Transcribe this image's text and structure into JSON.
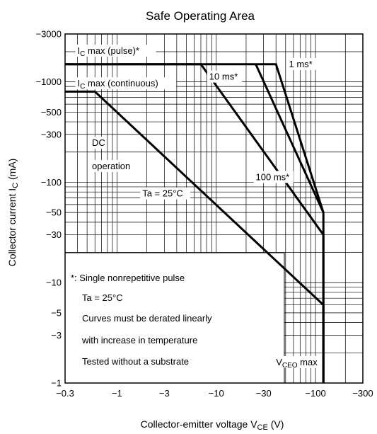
{
  "chart_data": {
    "type": "line",
    "title": "Safe Operating Area",
    "xlabel": "Collector-emitter voltage",
    "xlabel_symbol": "V",
    "xlabel_sub": "CE",
    "xlabel_unit": "(V)",
    "ylabel": "Collector current",
    "ylabel_symbol": "I",
    "ylabel_sub": "C",
    "ylabel_unit": "(mA)",
    "x_scale": "log",
    "y_scale": "log",
    "xlim": [
      -0.3,
      -300
    ],
    "ylim": [
      -1,
      -3000
    ],
    "grid": true,
    "x_ticks": [
      {
        "value": -0.3,
        "label": "−0.3"
      },
      {
        "value": -1,
        "label": "−1"
      },
      {
        "value": -3,
        "label": "−3"
      },
      {
        "value": -10,
        "label": "−10"
      },
      {
        "value": -30,
        "label": "−30"
      },
      {
        "value": -100,
        "label": "−100"
      },
      {
        "value": -300,
        "label": "−300"
      }
    ],
    "y_ticks": [
      {
        "value": -1,
        "label": "−1"
      },
      {
        "value": -3,
        "label": "−3"
      },
      {
        "value": -5,
        "label": "−5"
      },
      {
        "value": -10,
        "label": "−10"
      },
      {
        "value": -30,
        "label": "−30"
      },
      {
        "value": -50,
        "label": "−50"
      },
      {
        "value": -100,
        "label": "−100"
      },
      {
        "value": -300,
        "label": "−300"
      },
      {
        "value": -500,
        "label": "−500"
      },
      {
        "value": -1000,
        "label": "−1000"
      },
      {
        "value": -3000,
        "label": "−3000"
      }
    ],
    "series": [
      {
        "name": "1 ms*",
        "points": [
          [
            -0.3,
            -1500
          ],
          [
            -40,
            -1500
          ],
          [
            -120,
            -50
          ],
          [
            -120,
            -1
          ]
        ]
      },
      {
        "name": "10 ms*",
        "points": [
          [
            -25,
            -1500
          ],
          [
            -120,
            -50
          ]
        ]
      },
      {
        "name": "100 ms*",
        "points": [
          [
            -0.3,
            -1500
          ],
          [
            -7,
            -1500
          ],
          [
            -120,
            -30
          ],
          [
            -120,
            -1
          ]
        ]
      },
      {
        "name": "DC operation",
        "points": [
          [
            -0.3,
            -800
          ],
          [
            -0.6,
            -800
          ],
          [
            -120,
            -6
          ],
          [
            -120,
            -1
          ]
        ]
      }
    ],
    "annotations": [
      {
        "text": "I",
        "sub": "C",
        "rest": " max (pulse)*",
        "x": -0.4,
        "y": -1900
      },
      {
        "text": "I",
        "sub": "C",
        "rest": " max (continuous)",
        "x": -0.4,
        "y": -900
      },
      {
        "text": "10 ms*",
        "x": -8.5,
        "y": -1050
      },
      {
        "text": "1 ms*",
        "x": -54,
        "y": -1400
      },
      {
        "text": "DC",
        "x": -0.56,
        "y": -230
      },
      {
        "text": "operation",
        "x": -0.56,
        "y": -135
      },
      {
        "text": "100 ms*",
        "x": -25,
        "y": -105
      },
      {
        "text": "Ta = 25°C",
        "x": -1.8,
        "y": -72
      },
      {
        "text": "V",
        "sub": "CEO",
        "rest": " max",
        "x": -40,
        "y": -1.5
      }
    ],
    "notes": [
      {
        "text": "*:  Single nonrepetitive pulse"
      },
      {
        "text": "Ta = 25°C"
      },
      {
        "text": "Curves must be derated linearly"
      },
      {
        "text": "with increase in temperature"
      },
      {
        "text": "Tested without a substrate"
      }
    ]
  }
}
